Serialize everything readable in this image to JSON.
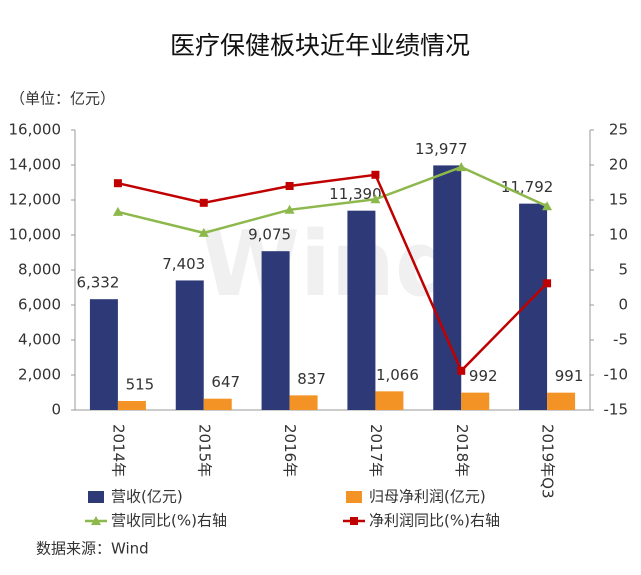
{
  "chart_data": {
    "type": "bar-line",
    "title": "医疗保健板块近年业绩情况",
    "unit_label": "（单位：亿元）",
    "watermark": "Wind",
    "source": "数据来源：Wind",
    "categories": [
      "2014年",
      "2015年",
      "2016年",
      "2017年",
      "2018年",
      "2019年Q3"
    ],
    "ylim": [
      0,
      16000
    ],
    "yticks": [
      0,
      {
        "value": 2000,
        "label": "2,000"
      },
      {
        "value": 4000,
        "label": "4,000"
      },
      {
        "value": 6000,
        "label": "6,000"
      },
      {
        "value": 8000,
        "label": "8,000"
      },
      {
        "value": 10000,
        "label": "10,000"
      },
      {
        "value": 12000,
        "label": "12,000"
      },
      {
        "value": 14000,
        "label": "14,000"
      },
      {
        "value": 16000,
        "label": "16,000"
      }
    ],
    "y2lim": [
      -15,
      25
    ],
    "y2ticks": [
      -15,
      -10,
      -5,
      0,
      5,
      10,
      15,
      20,
      25
    ],
    "series": [
      {
        "name": "营收(亿元)",
        "type": "bar",
        "color": "#2e3a78",
        "values": [
          6332,
          7403,
          9075,
          11390,
          13977,
          11792
        ],
        "value_labels": [
          "6,332",
          "7,403",
          "9,075",
          "11,390",
          "13,977",
          "11,792"
        ]
      },
      {
        "name": "归母净利润(亿元)",
        "type": "bar",
        "color": "#f39325",
        "values": [
          515,
          647,
          837,
          1066,
          992,
          991
        ],
        "value_labels": [
          "515",
          "647",
          "837",
          "1,066",
          "992",
          "991"
        ]
      },
      {
        "name": "营收同比(%)右轴",
        "type": "line",
        "axis": "y2",
        "marker": "triangle",
        "color": "#8db84c",
        "values": [
          13.3,
          10.3,
          13.6,
          15.1,
          19.7,
          14.1
        ]
      },
      {
        "name": "净利润同比(%)右轴",
        "type": "line",
        "axis": "y2",
        "marker": "square",
        "color": "#c00000",
        "values": [
          17.4,
          14.6,
          17.0,
          18.6,
          -9.4,
          3.1
        ]
      }
    ]
  }
}
